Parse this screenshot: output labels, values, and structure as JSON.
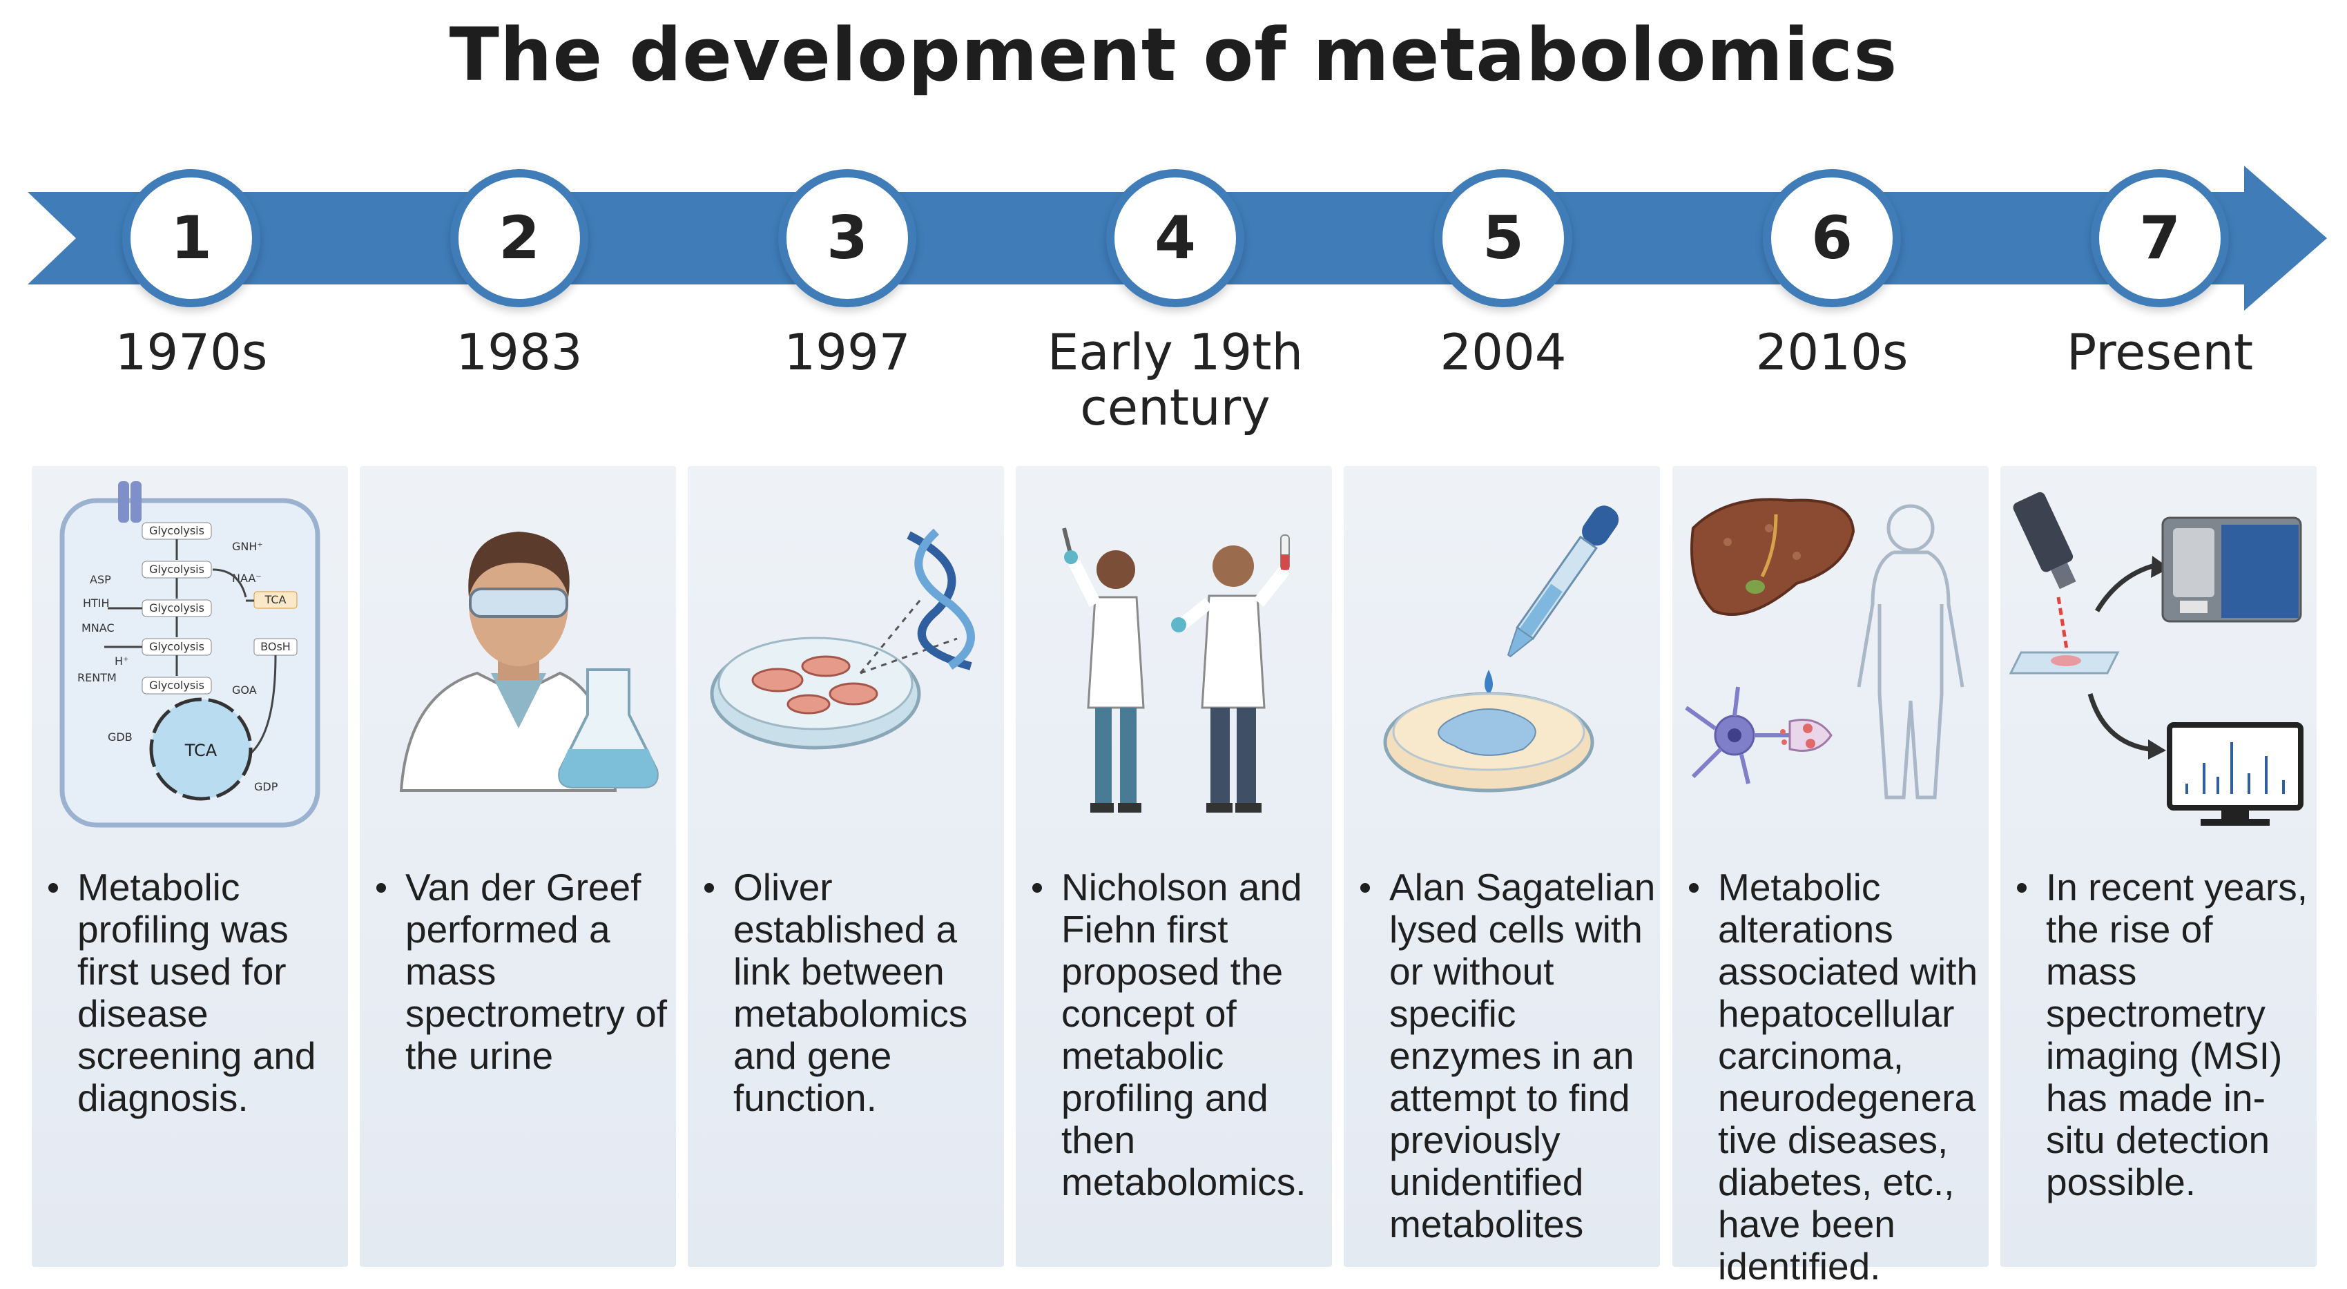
{
  "title": "The development of metabolomics",
  "colors": {
    "arrow": "#3f7cb8",
    "panel": "#e9eef5",
    "node_fill": "#ffffff"
  },
  "milestones": [
    {
      "number": "1",
      "period": "1970s",
      "icon": "cell-metabolic-pathway-icon",
      "diagram_labels": [
        "Glycolysis",
        "GNH⁺",
        "Glycolysis",
        "NAA⁻",
        "ASP",
        "Glycolysis",
        "TCA",
        "HTIH",
        "MNAC",
        "Glycolysis",
        "BOsH",
        "H⁺",
        "RENTM",
        "Glycolysis",
        "GOA",
        "GDB",
        "TCA",
        "GDP"
      ],
      "description": "Metabolic profiling was first used for disease screening and diagnosis."
    },
    {
      "number": "2",
      "period": "1983",
      "icon": "scientist-with-flask-icon",
      "description": "Van der Greef performed a mass spectrometry of the urine"
    },
    {
      "number": "3",
      "period": "1997",
      "icon": "petri-dish-dna-icon",
      "description": "Oliver established a link between metabolomics and gene function."
    },
    {
      "number": "4",
      "period": "Early 19th century",
      "icon": "two-scientists-icon",
      "description": "Nicholson and Fiehn first proposed the concept of metabolic profiling and then metabolomics."
    },
    {
      "number": "5",
      "period": "2004",
      "icon": "dropper-petri-dish-icon",
      "description": "Alan Sagatelian lysed cells with or without specific enzymes in an attempt to find previously unidentified metabolites"
    },
    {
      "number": "6",
      "period": "2010s",
      "icon": "liver-neuron-body-icon",
      "description": "Metabolic alterations associated with hepatocellular carcinoma, neurodegenerative diseases, diabetes, etc., have been identified."
    },
    {
      "number": "7",
      "period": "Present",
      "icon": "mass-spectrometry-imaging-icon",
      "description": "In recent years, the rise of mass spectrometry imaging (MSI) has made in-situ detection possible."
    }
  ]
}
